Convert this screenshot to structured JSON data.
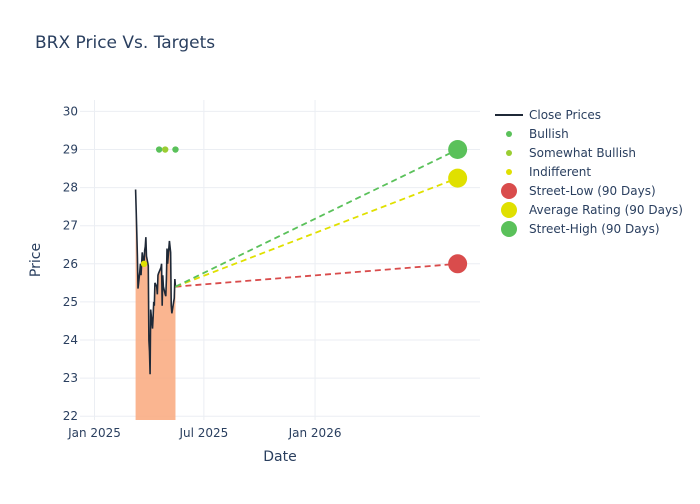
{
  "chart_data": {
    "type": "line",
    "title": "BRX Price Vs. Targets",
    "xlabel": "Date",
    "ylabel": "Price",
    "xlim": [
      "2024-12-08",
      "2026-10-01"
    ],
    "ylim": [
      21.9,
      30.3
    ],
    "x_ticks": [
      {
        "label": "Jan 2025",
        "date": "2025-01-01"
      },
      {
        "label": "Jul 2025",
        "date": "2025-07-01"
      },
      {
        "label": "Jan 2026",
        "date": "2026-01-01"
      }
    ],
    "y_ticks": [
      22,
      23,
      24,
      25,
      26,
      27,
      28,
      29,
      30
    ],
    "grid": true,
    "legend_position": "top-right",
    "colors": {
      "close": "#1f2937",
      "fill": "#f9a87d",
      "bullish": "#5ac15a",
      "somewhat_bullish": "#9acd32",
      "indifferent": "#e0e000",
      "street_low": "#d94c4c",
      "average": "#e0e000",
      "street_high": "#5ac15a",
      "grid": "#ebeef3",
      "zero_line": "#e1e5ec"
    },
    "close_prices": {
      "name": "Close Prices",
      "points": [
        [
          "2025-03-10",
          27.95
        ],
        [
          "2025-03-11",
          27.4
        ],
        [
          "2025-03-12",
          26.8
        ],
        [
          "2025-03-13",
          26.2
        ],
        [
          "2025-03-14",
          25.35
        ],
        [
          "2025-03-17",
          25.8
        ],
        [
          "2025-03-18",
          26.0
        ],
        [
          "2025-03-19",
          25.7
        ],
        [
          "2025-03-20",
          26.0
        ],
        [
          "2025-03-21",
          26.3
        ],
        [
          "2025-03-24",
          25.95
        ],
        [
          "2025-03-25",
          26.35
        ],
        [
          "2025-03-26",
          26.45
        ],
        [
          "2025-03-27",
          26.7
        ],
        [
          "2025-03-28",
          26.2
        ],
        [
          "2025-03-31",
          25.95
        ],
        [
          "2025-04-01",
          24.0
        ],
        [
          "2025-04-02",
          23.7
        ],
        [
          "2025-04-03",
          23.1
        ],
        [
          "2025-04-04",
          24.8
        ],
        [
          "2025-04-07",
          24.3
        ],
        [
          "2025-04-08",
          24.6
        ],
        [
          "2025-04-09",
          25.0
        ],
        [
          "2025-04-10",
          24.9
        ],
        [
          "2025-04-11",
          25.5
        ],
        [
          "2025-04-14",
          25.4
        ],
        [
          "2025-04-15",
          25.2
        ],
        [
          "2025-04-16",
          25.7
        ],
        [
          "2025-04-17",
          25.75
        ],
        [
          "2025-04-21",
          25.9
        ],
        [
          "2025-04-22",
          26.0
        ],
        [
          "2025-04-23",
          24.9
        ],
        [
          "2025-04-24",
          25.7
        ],
        [
          "2025-04-25",
          25.4
        ],
        [
          "2025-04-28",
          25.2
        ],
        [
          "2025-04-29",
          25.15
        ],
        [
          "2025-04-30",
          25.6
        ],
        [
          "2025-05-01",
          26.4
        ],
        [
          "2025-05-02",
          26.0
        ],
        [
          "2025-05-05",
          26.6
        ],
        [
          "2025-05-06",
          26.45
        ],
        [
          "2025-05-07",
          26.3
        ],
        [
          "2025-05-08",
          24.9
        ],
        [
          "2025-05-09",
          24.7
        ],
        [
          "2025-05-12",
          25.0
        ],
        [
          "2025-05-13",
          25.1
        ],
        [
          "2025-05-14",
          25.6
        ],
        [
          "2025-05-15",
          25.4
        ]
      ]
    },
    "analyst_ratings": [
      {
        "name": "Bullish",
        "points": [
          [
            "2025-04-18",
            29
          ],
          [
            "2025-05-15",
            29
          ]
        ]
      },
      {
        "name": "Somewhat Bullish",
        "points": [
          [
            "2025-04-28",
            29
          ]
        ]
      },
      {
        "name": "Indifferent",
        "points": [
          [
            "2025-03-24",
            26
          ]
        ]
      }
    ],
    "targets": {
      "start": [
        "2025-05-15",
        25.4
      ],
      "end_date": "2026-08-25",
      "series": [
        {
          "name": "Street-Low (90 Days)",
          "value": 26.0
        },
        {
          "name": "Average Rating (90 Days)",
          "value": 28.25
        },
        {
          "name": "Street-High (90 Days)",
          "value": 29.0
        }
      ]
    }
  }
}
